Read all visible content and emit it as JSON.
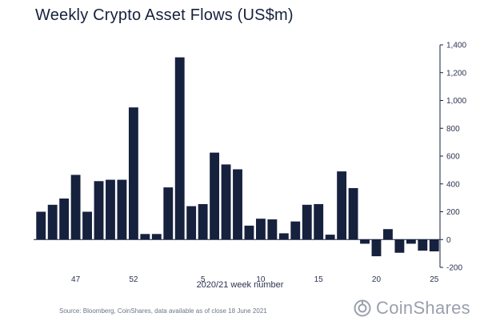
{
  "header": {
    "title": "Weekly Crypto Asset Flows (US$m)"
  },
  "footer": {
    "source": "Source: Bloomberg, CoinShares, data available as of close 18 June 2021",
    "brand": "CoinShares"
  },
  "colors": {
    "bar": "#16213e",
    "axis": "#16213e",
    "text": "#2b3350"
  },
  "chart_data": {
    "type": "bar",
    "title": "Weekly Crypto Asset Flows (US$m)",
    "xlabel": "2020/21 week number",
    "ylabel": "",
    "ylim": [
      -200,
      1400
    ],
    "y_ticks": [
      -200,
      0,
      200,
      400,
      600,
      800,
      1000,
      1200,
      1400
    ],
    "y_tick_labels": [
      "-200",
      "0",
      "200",
      "400",
      "600",
      "800",
      "1,000",
      "1,200",
      "1,400"
    ],
    "y_axis_side": "right",
    "grid": false,
    "legend": "none",
    "categories": [
      "44",
      "45",
      "46",
      "47",
      "48",
      "49",
      "50",
      "51",
      "52",
      "53",
      "1",
      "2",
      "3",
      "4",
      "5",
      "6",
      "7",
      "8",
      "9",
      "10",
      "11",
      "12",
      "13",
      "14",
      "15",
      "16",
      "17",
      "18",
      "19",
      "20",
      "21",
      "22",
      "23",
      "24",
      "25"
    ],
    "x_tick_labels": {
      "47": "47",
      "52": "52",
      "5": "5",
      "10": "10",
      "15": "15",
      "20": "20",
      "25": "25"
    },
    "values": [
      200,
      250,
      295,
      465,
      200,
      420,
      430,
      430,
      950,
      40,
      40,
      375,
      1310,
      240,
      255,
      625,
      540,
      505,
      100,
      150,
      145,
      45,
      130,
      250,
      255,
      35,
      490,
      370,
      -30,
      -120,
      75,
      -95,
      -30,
      -80,
      -85
    ]
  }
}
